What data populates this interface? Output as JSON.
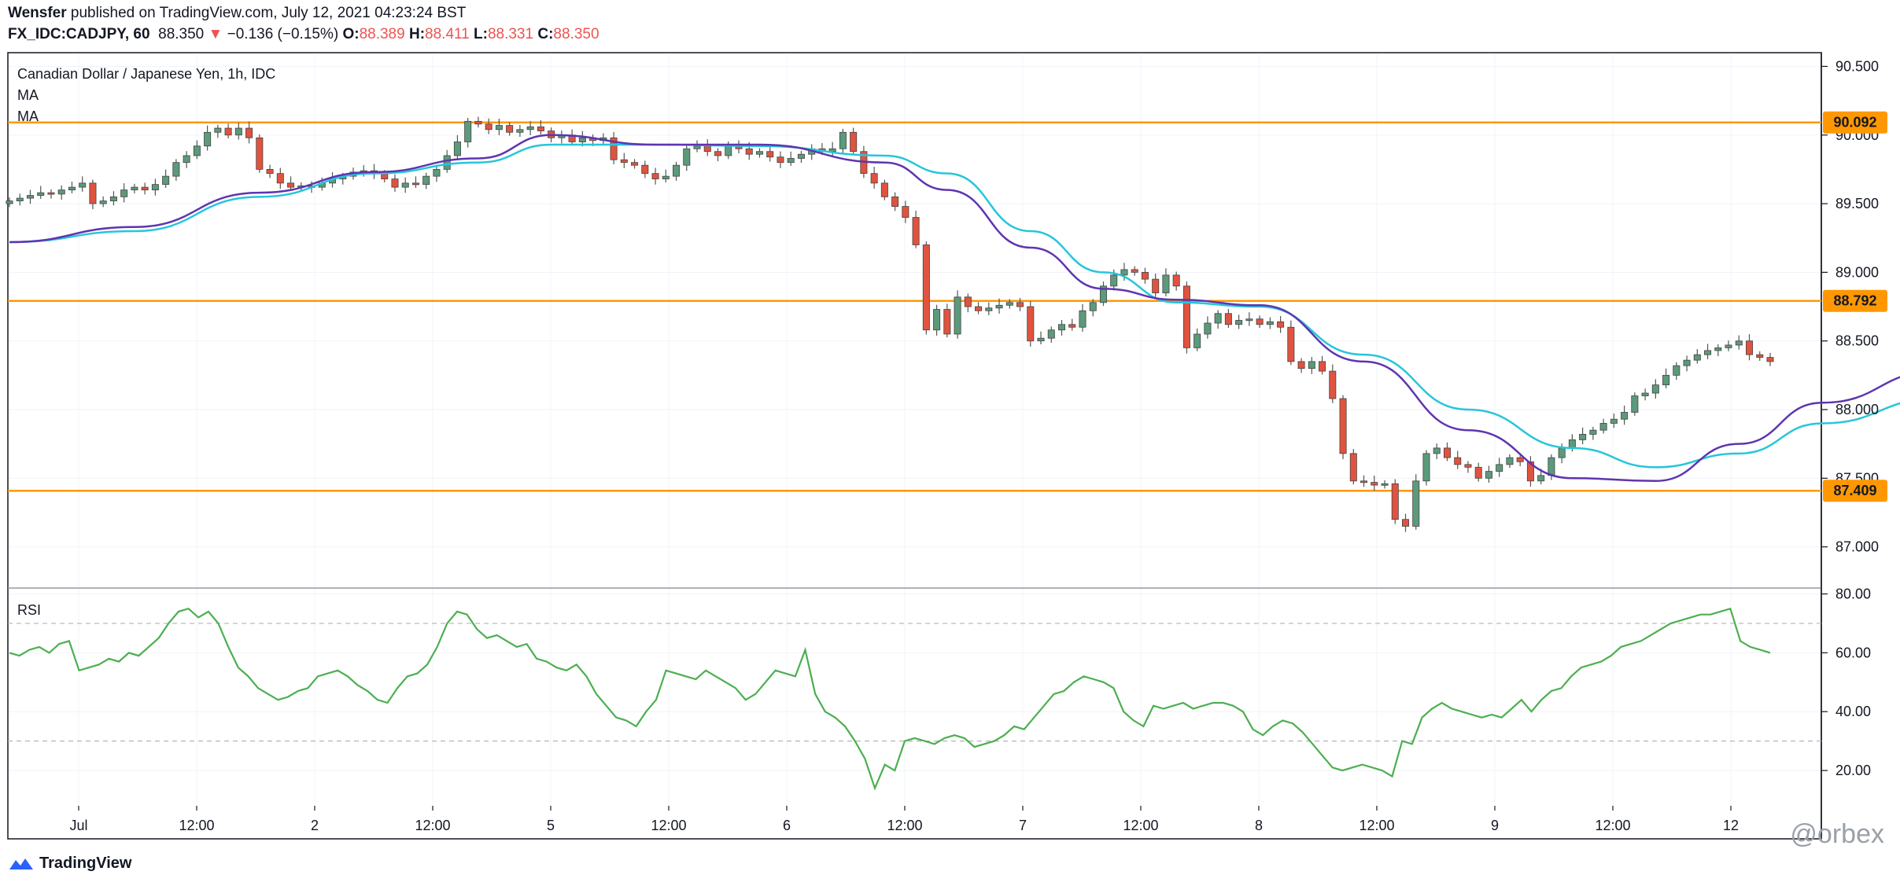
{
  "header": {
    "author": "Wensfer",
    "published_text": " published on TradingView.com, July 12, 2021 04:23:24 BST",
    "symbol": "FX_IDC:CADJPY, 60",
    "last": "88.350",
    "change_arrow": "▼",
    "change": "−0.136 (−0.15%)",
    "o_label": "O:",
    "o_value": "88.389",
    "h_label": "H:",
    "h_value": "88.411",
    "l_label": "L:",
    "l_value": "88.331",
    "c_label": "C:",
    "c_value": "88.350"
  },
  "legend": {
    "title": "Canadian Dollar / Japanese Yen, 1h, IDC",
    "ma1": "MA",
    "ma2": "MA",
    "rsi": "RSI"
  },
  "footer": {
    "brand": "TradingView",
    "watermark": "@orbex"
  },
  "colors": {
    "up": "#5b9a7a",
    "down": "#e0533f",
    "ma_fast": "#5e35b1",
    "ma_slow": "#26c6da",
    "rsi": "#4caf50",
    "level": "#ff9800",
    "grid": "#f0f3fa"
  },
  "chart_data": [
    {
      "type": "candlestick",
      "title": "Canadian Dollar / Japanese Yen, 1h, IDC",
      "ylim": [
        86.7,
        90.6
      ],
      "y_ticks": [
        "90.500",
        "90.000",
        "89.500",
        "89.000",
        "88.500",
        "88.000",
        "87.500",
        "87.000"
      ],
      "x_ticks": [
        "Jul",
        "12:00",
        "2",
        "12:00",
        "5",
        "12:00",
        "6",
        "12:00",
        "7",
        "12:00",
        "8",
        "12:00",
        "9",
        "12:00",
        "12"
      ],
      "levels": [
        {
          "value": 90.092,
          "label": "90.092"
        },
        {
          "value": 88.792,
          "label": "88.792"
        },
        {
          "value": 87.409,
          "label": "87.409"
        }
      ],
      "closes": [
        89.52,
        89.54,
        89.56,
        89.58,
        89.57,
        89.6,
        89.62,
        89.65,
        89.5,
        89.52,
        89.55,
        89.6,
        89.62,
        89.6,
        89.64,
        89.7,
        89.8,
        89.85,
        89.92,
        90.02,
        90.05,
        90.0,
        90.05,
        89.98,
        89.75,
        89.72,
        89.65,
        89.62,
        89.63,
        89.62,
        89.65,
        89.68,
        89.7,
        89.73,
        89.74,
        89.72,
        89.68,
        89.62,
        89.65,
        89.64,
        89.7,
        89.75,
        89.85,
        89.95,
        90.1,
        90.08,
        90.04,
        90.07,
        90.02,
        90.04,
        90.06,
        90.03,
        89.98,
        90.0,
        89.95,
        89.98,
        89.96,
        89.98,
        89.82,
        89.8,
        89.78,
        89.72,
        89.68,
        89.7,
        89.78,
        89.9,
        89.92,
        89.88,
        89.85,
        89.92,
        89.9,
        89.86,
        89.88,
        89.84,
        89.8,
        89.83,
        89.86,
        89.9,
        89.88,
        89.9,
        90.02,
        89.88,
        89.72,
        89.65,
        89.55,
        89.48,
        89.4,
        89.2,
        88.58,
        88.73,
        88.55,
        88.82,
        88.75,
        88.72,
        88.74,
        88.76,
        88.78,
        88.75,
        88.5,
        88.52,
        88.58,
        88.62,
        88.6,
        88.72,
        88.78,
        88.9,
        88.98,
        89.02,
        89.0,
        88.95,
        88.85,
        88.98,
        88.9,
        88.45,
        88.55,
        88.63,
        88.7,
        88.62,
        88.65,
        88.66,
        88.62,
        88.64,
        88.6,
        88.35,
        88.3,
        88.35,
        88.28,
        88.08,
        87.68,
        87.48,
        87.47,
        87.45,
        87.46,
        87.2,
        87.15,
        87.48,
        87.68,
        87.72,
        87.65,
        87.6,
        87.58,
        87.5,
        87.55,
        87.6,
        87.65,
        87.62,
        87.48,
        87.52,
        87.65,
        87.72,
        87.78,
        87.82,
        87.85,
        87.9,
        87.93,
        87.98,
        88.1,
        88.12,
        88.18,
        88.25,
        88.32,
        88.36,
        88.4,
        88.43,
        88.45,
        88.47,
        88.5,
        88.4,
        88.38,
        88.35
      ],
      "ma_fast": {
        "points": [
          [
            0,
            89.22
          ],
          [
            12,
            89.33
          ],
          [
            24,
            89.58
          ],
          [
            35,
            89.73
          ],
          [
            45,
            89.83
          ],
          [
            52,
            90.0
          ],
          [
            62,
            89.93
          ],
          [
            72,
            89.93
          ],
          [
            84,
            89.8
          ],
          [
            90,
            89.6
          ],
          [
            98,
            89.18
          ],
          [
            105,
            88.88
          ],
          [
            112,
            88.8
          ],
          [
            120,
            88.76
          ],
          [
            130,
            88.35
          ],
          [
            140,
            87.85
          ],
          [
            150,
            87.5
          ],
          [
            158,
            87.48
          ],
          [
            166,
            87.75
          ],
          [
            174,
            88.05
          ],
          [
            185,
            88.28
          ]
        ]
      },
      "ma_slow": {
        "points": [
          [
            0,
            89.22
          ],
          [
            12,
            89.3
          ],
          [
            24,
            89.55
          ],
          [
            35,
            89.72
          ],
          [
            45,
            89.8
          ],
          [
            52,
            89.93
          ],
          [
            62,
            89.93
          ],
          [
            72,
            89.92
          ],
          [
            84,
            89.85
          ],
          [
            90,
            89.72
          ],
          [
            98,
            89.3
          ],
          [
            105,
            89.0
          ],
          [
            112,
            88.78
          ],
          [
            120,
            88.75
          ],
          [
            130,
            88.4
          ],
          [
            140,
            88.0
          ],
          [
            150,
            87.72
          ],
          [
            158,
            87.58
          ],
          [
            166,
            87.68
          ],
          [
            174,
            87.9
          ],
          [
            185,
            88.08
          ]
        ]
      }
    },
    {
      "type": "line",
      "title": "RSI",
      "ylim": [
        8,
        82
      ],
      "y_ticks": [
        "80.00",
        "60.00",
        "40.00",
        "20.00"
      ],
      "bands": [
        70,
        30
      ],
      "series": [
        {
          "values": [
            60,
            59,
            61,
            62,
            60,
            63,
            64,
            54,
            55,
            56,
            58,
            57,
            60,
            59,
            62,
            65,
            70,
            74,
            75,
            72,
            74,
            70,
            62,
            55,
            52,
            48,
            46,
            44,
            45,
            47,
            48,
            52,
            53,
            54,
            52,
            49,
            47,
            44,
            43,
            48,
            52,
            53,
            56,
            62,
            70,
            74,
            73,
            68,
            65,
            66,
            64,
            62,
            63,
            58,
            57,
            55,
            54,
            56,
            52,
            46,
            42,
            38,
            37,
            35,
            40,
            44,
            54,
            53,
            52,
            51,
            54,
            52,
            50,
            48,
            44,
            46,
            50,
            54,
            53,
            52,
            61,
            46,
            40,
            38,
            35,
            30,
            24,
            14,
            22,
            20,
            30,
            31,
            30,
            29,
            31,
            32,
            31,
            28,
            29,
            30,
            32,
            35,
            34,
            38,
            42,
            46,
            47,
            50,
            52,
            51,
            50,
            48,
            40,
            37,
            35,
            42,
            41,
            42,
            43,
            41,
            42,
            43,
            43,
            42,
            40,
            34,
            32,
            35,
            37,
            36,
            33,
            29,
            25,
            21,
            20,
            21,
            22,
            21,
            20,
            18,
            30,
            29,
            38,
            41,
            43,
            41,
            40,
            39,
            38,
            39,
            38,
            41,
            44,
            40,
            44,
            47,
            48,
            52,
            55,
            56,
            57,
            59,
            62,
            63,
            64,
            66,
            68,
            70,
            71,
            72,
            73,
            73,
            74,
            75,
            64,
            62,
            61,
            60
          ]
        }
      ]
    }
  ]
}
